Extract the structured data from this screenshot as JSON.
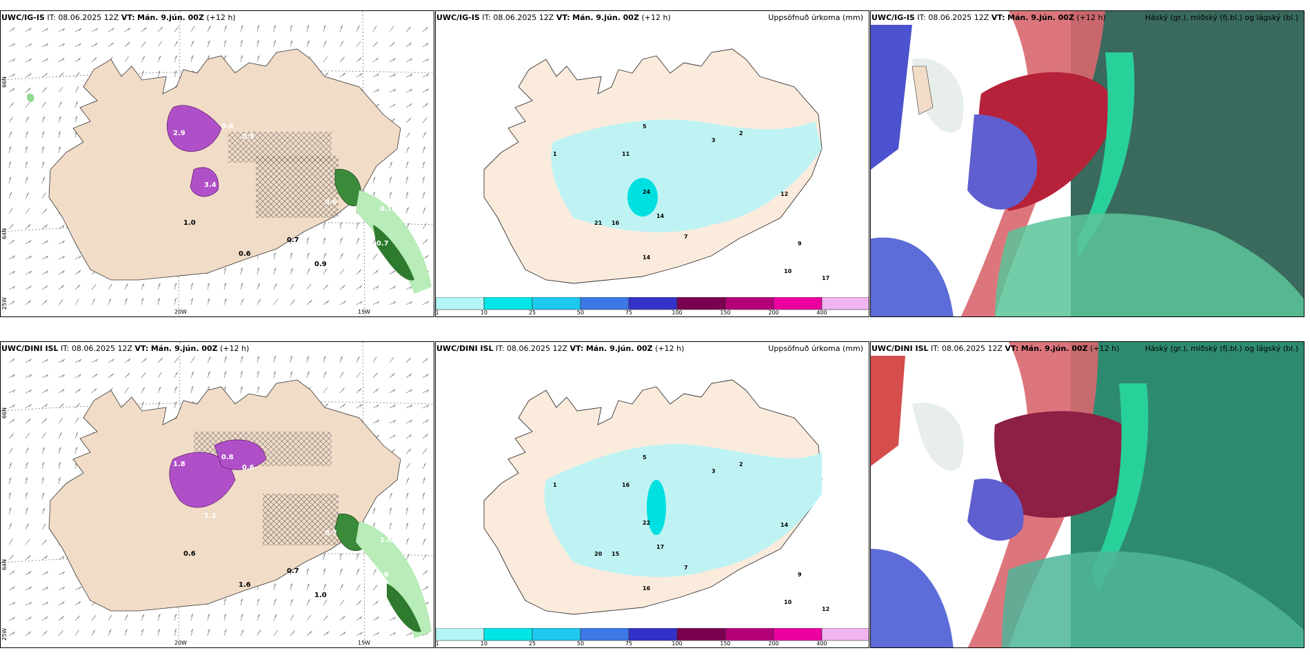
{
  "rows": [
    {
      "model": "UWC/IG-IS",
      "it_label": "IT:",
      "it_value": "08.06.2025 12Z",
      "vt_label": "VT:",
      "vt_value": "Mán. 9.jún. 00Z",
      "lead": "(+12 h)",
      "precip_title": "Uppsöfnuð úrkoma (mm)",
      "cloud_title": "Háský (gr.), miðský (fj.bl.) og lágský (bl.)",
      "map_labels": [
        "2.9",
        "3.4",
        "0.6",
        "0.5",
        "1.0",
        "0.6",
        "0.7",
        "0.9",
        "1.0",
        "0.7",
        "0.7",
        "0.6"
      ],
      "precip_labels": [
        "24",
        "21",
        "14",
        "14",
        "11",
        "16",
        "12",
        "17",
        "10",
        "9",
        "7",
        "5",
        "3",
        "2",
        "1"
      ]
    },
    {
      "model": "UWC/DINI ISL",
      "it_label": "IT:",
      "it_value": "08.06.2025 12Z",
      "vt_label": "VT:",
      "vt_value": "Mán. 9.jún. 00Z",
      "lead": "(+12 h)",
      "precip_title": "Uppsöfnuð úrkoma (mm)",
      "cloud_title": "Háský (gr.), miðský (fj.bl.) og lágský (bl.)",
      "map_labels": [
        "1.8",
        "1.2",
        "0.8",
        "0.6",
        "0.6",
        "1.6",
        "0.7",
        "1.0",
        "0.6",
        "1.8",
        "1.6",
        "0.7"
      ],
      "precip_labels": [
        "22",
        "20",
        "17",
        "16",
        "16",
        "15",
        "14",
        "12",
        "10",
        "9",
        "7",
        "5",
        "3",
        "2",
        "1"
      ]
    }
  ],
  "axis_labels": {
    "lon_20w": "20W",
    "lon_15w": "15W",
    "lat_66n": "66N",
    "lat_64n": "64N",
    "lat_25w": "25W"
  },
  "colorbar": {
    "ticks": [
      "1",
      "10",
      "25",
      "50",
      "75",
      "100",
      "150",
      "200",
      "400"
    ],
    "colors": [
      "#b4f5f5",
      "#00e6e6",
      "#1ec8ee",
      "#3c78e6",
      "#3232c8",
      "#7a0050",
      "#b40078",
      "#ec00a0",
      "#f0b4f0"
    ]
  }
}
